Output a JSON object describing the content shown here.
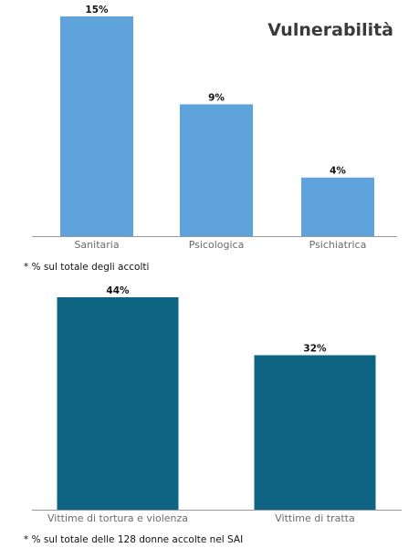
{
  "title": "Vulnerabilità",
  "chart_data": [
    {
      "type": "bar",
      "categories": [
        "Sanitaria",
        "Psicologica",
        "Psichiatrica"
      ],
      "values": [
        15,
        9,
        4
      ],
      "value_labels": [
        "15%",
        "9%",
        "4%"
      ],
      "ylim": [
        0,
        15
      ],
      "grid": false,
      "bar_color": "#5fa3dc",
      "note": "* % sul totale degli accolti"
    },
    {
      "type": "bar",
      "categories": [
        "Vittime di tortura e violenza",
        "Vittime di tratta"
      ],
      "values": [
        44,
        32
      ],
      "value_labels": [
        "44%",
        "32%"
      ],
      "ylim": [
        0,
        44
      ],
      "grid": false,
      "bar_color": "#0e6483",
      "note": "* % sul totale delle 128 donne accolte nel SAI"
    }
  ]
}
